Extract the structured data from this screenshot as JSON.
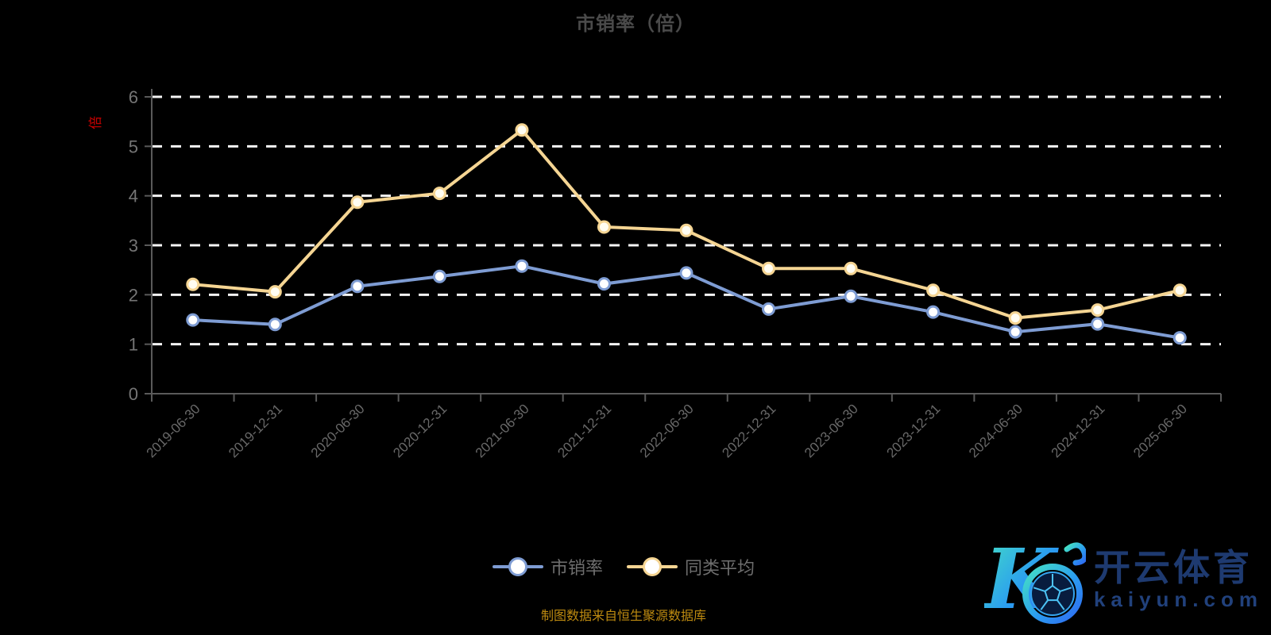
{
  "title": "市销率（倍）",
  "y_axis": {
    "name": "倍",
    "name_color": "#cc0000"
  },
  "chart_data": {
    "type": "line",
    "title": "市销率（倍）",
    "categories": [
      "2019-06-30",
      "2019-12-31",
      "2020-06-30",
      "2020-12-31",
      "2021-06-30",
      "2021-12-31",
      "2022-06-30",
      "2022-12-31",
      "2023-06-30",
      "2023-12-31",
      "2024-06-30",
      "2024-12-31",
      "2025-06-30"
    ],
    "series": [
      {
        "name": "市销率",
        "color": "#7e9cd3",
        "marker_fill": "#ffffff",
        "values": [
          1.49,
          1.4,
          2.17,
          2.37,
          2.58,
          2.22,
          2.44,
          1.71,
          1.97,
          1.65,
          1.25,
          1.41,
          1.13
        ]
      },
      {
        "name": "同类平均",
        "color": "#f5d593",
        "marker_fill": "#fffdf2",
        "values": [
          2.21,
          2.06,
          3.87,
          4.05,
          5.33,
          3.37,
          3.3,
          2.53,
          2.53,
          2.09,
          1.53,
          1.69,
          2.09
        ]
      }
    ],
    "ylabel": "倍",
    "xlabel": "",
    "ylim": [
      0,
      6
    ],
    "ytick_step": 1,
    "grid": "horizontal dashed white lines",
    "legend_position": "bottom-center",
    "axis_colors": {
      "axis_line": "#5a5a5a",
      "y_tick_label": "#757575",
      "x_tick_label": "#686868",
      "grid_line": "#f5f5f5"
    }
  },
  "legend": {
    "items": [
      {
        "label": "市销率",
        "color": "#7e9cd3"
      },
      {
        "label": "同类平均",
        "color": "#f5d593"
      }
    ]
  },
  "footer": {
    "note": "制图数据来自恒生聚源数据库"
  },
  "watermark": {
    "brand": "开云体育",
    "domain": "kaiyun.com"
  }
}
